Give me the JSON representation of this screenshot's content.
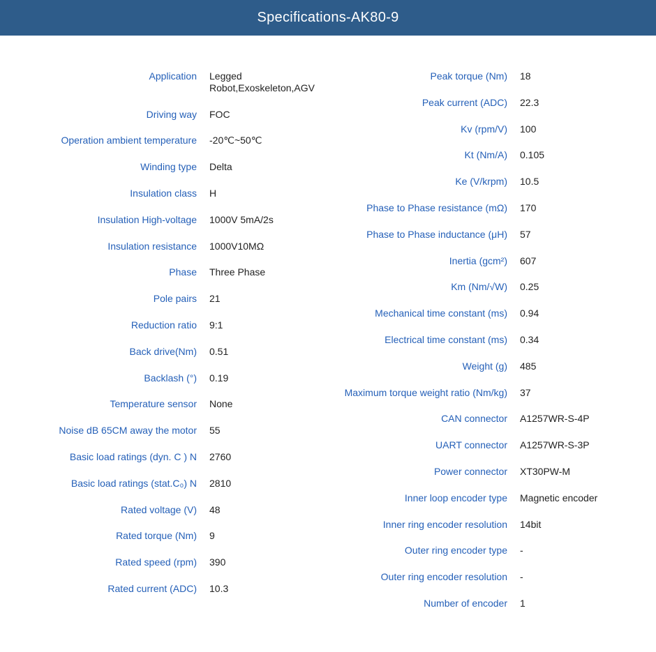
{
  "title": "Specifications-AK80-9",
  "colors": {
    "header_bg": "#2e5c8a",
    "header_text": "#ffffff",
    "label": "#2560b8",
    "value": "#222222",
    "page_bg": "#ffffff"
  },
  "left": [
    {
      "label": "Application",
      "value": "Legged Robot,Exoskeleton,AGV"
    },
    {
      "label": "Driving way",
      "value": "FOC"
    },
    {
      "label": "Operation ambient temperature",
      "value": "-20℃~50℃"
    },
    {
      "label": "Winding type",
      "value": "Delta"
    },
    {
      "label": "Insulation class",
      "value": "H"
    },
    {
      "label": "Insulation High-voltage",
      "value": "1000V 5mA/2s"
    },
    {
      "label": "Insulation resistance",
      "value": "1000V10MΩ"
    },
    {
      "label": "Phase",
      "value": "Three Phase"
    },
    {
      "label": "Pole pairs",
      "value": "21"
    },
    {
      "label": "Reduction ratio",
      "value": "9:1"
    },
    {
      "label": "Back drive(Nm)",
      "value": "0.51"
    },
    {
      "label": "Backlash (°)",
      "value": "0.19"
    },
    {
      "label": "Temperature sensor",
      "value": "None"
    },
    {
      "label": "Noise dB 65CM away the motor",
      "value": "55"
    },
    {
      "label": "Basic load ratings (dyn. C ) N",
      "value": "2760"
    },
    {
      "label": "Basic load ratings (stat.C₀) N",
      "value": "2810"
    },
    {
      "label": "Rated voltage (V)",
      "value": "48"
    },
    {
      "label": "Rated torque (Nm)",
      "value": "9"
    },
    {
      "label": "Rated speed (rpm)",
      "value": "390"
    },
    {
      "label": "Rated current (ADC)",
      "value": "10.3"
    }
  ],
  "right": [
    {
      "label": "Peak torque (Nm)",
      "value": "18"
    },
    {
      "label": "Peak current (ADC)",
      "value": "22.3"
    },
    {
      "label": "Kv (rpm/V)",
      "value": "100"
    },
    {
      "label": "Kt (Nm/A)",
      "value": "0.105"
    },
    {
      "label": "Ke (V/krpm)",
      "value": "10.5"
    },
    {
      "label": "Phase to Phase resistance (mΩ)",
      "value": "170"
    },
    {
      "label": "Phase to Phase inductance (μH)",
      "value": "57"
    },
    {
      "label": "Inertia (gcm²)",
      "value": "607"
    },
    {
      "label": "Km (Nm/√W)",
      "value": "0.25"
    },
    {
      "label": "Mechanical time constant (ms)",
      "value": "0.94"
    },
    {
      "label": "Electrical time constant (ms)",
      "value": "0.34"
    },
    {
      "label": "Weight (g)",
      "value": "485"
    },
    {
      "label": "Maximum torque weight ratio (Nm/kg)",
      "value": "37"
    },
    {
      "label": "CAN connector",
      "value": "A1257WR-S-4P"
    },
    {
      "label": "UART connector",
      "value": "A1257WR-S-3P"
    },
    {
      "label": "Power connector",
      "value": "XT30PW-M"
    },
    {
      "label": "Inner loop encoder type",
      "value": "Magnetic encoder"
    },
    {
      "label": "Inner ring encoder resolution",
      "value": "14bit"
    },
    {
      "label": "Outer ring encoder type",
      "value": "-"
    },
    {
      "label": "Outer ring encoder resolution",
      "value": "-"
    },
    {
      "label": "Number of encoder",
      "value": "1"
    }
  ]
}
